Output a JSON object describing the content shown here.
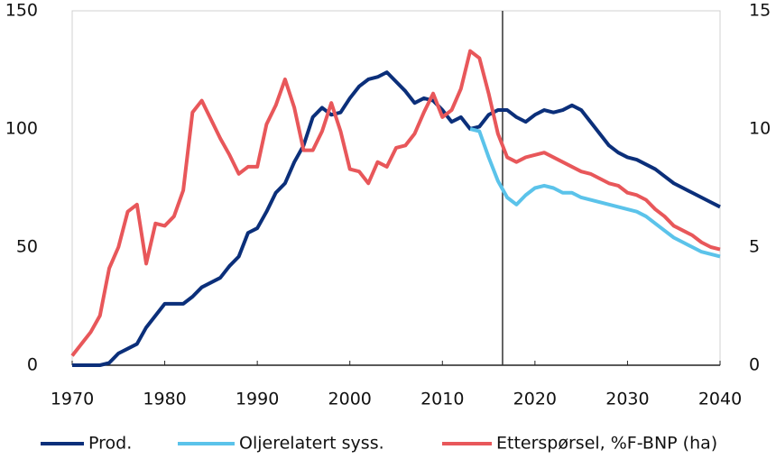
{
  "chart_data": {
    "type": "line",
    "x": [
      1970,
      1971,
      1972,
      1973,
      1974,
      1975,
      1976,
      1977,
      1978,
      1979,
      1980,
      1981,
      1982,
      1983,
      1984,
      1985,
      1986,
      1987,
      1988,
      1989,
      1990,
      1991,
      1992,
      1993,
      1994,
      1995,
      1996,
      1997,
      1998,
      1999,
      2000,
      2001,
      2002,
      2003,
      2004,
      2005,
      2006,
      2007,
      2008,
      2009,
      2010,
      2011,
      2012,
      2013,
      2014,
      2015,
      2016,
      2017,
      2018,
      2019,
      2020,
      2021,
      2022,
      2023,
      2024,
      2025,
      2026,
      2027,
      2028,
      2029,
      2030,
      2031,
      2032,
      2033,
      2034,
      2035,
      2036,
      2037,
      2038,
      2039,
      2040
    ],
    "series": [
      {
        "name": "Prod.",
        "color": "#0b2f7a",
        "values": [
          0,
          0,
          0,
          0,
          1,
          5,
          7,
          9,
          16,
          21,
          26,
          26,
          26,
          29,
          33,
          35,
          37,
          42,
          46,
          56,
          58,
          65,
          73,
          77,
          86,
          93,
          105,
          109,
          106,
          107,
          113,
          118,
          121,
          122,
          124,
          120,
          116,
          111,
          113,
          112,
          108,
          103,
          105,
          100,
          101,
          106,
          108,
          108,
          105,
          103,
          106,
          108,
          107,
          108,
          110,
          108,
          103,
          98,
          93,
          90,
          88,
          87,
          85,
          83,
          80,
          77,
          75,
          73,
          71,
          69,
          67
        ]
      },
      {
        "name": "Oljerelatert syss.",
        "color": "#5bc3ea",
        "values": [
          null,
          null,
          null,
          null,
          null,
          null,
          null,
          null,
          null,
          null,
          null,
          null,
          null,
          null,
          null,
          null,
          null,
          null,
          null,
          null,
          null,
          null,
          null,
          null,
          null,
          null,
          null,
          null,
          null,
          null,
          null,
          null,
          null,
          null,
          null,
          null,
          null,
          null,
          null,
          null,
          null,
          null,
          null,
          100,
          99,
          88,
          78,
          71,
          68,
          72,
          75,
          76,
          75,
          73,
          73,
          71,
          70,
          69,
          68,
          67,
          66,
          65,
          63,
          60,
          57,
          54,
          52,
          50,
          48,
          47,
          46
        ]
      },
      {
        "name": "Etterspørsel, %F-BNP (ha)",
        "color": "#e8575a",
        "axis": "y2",
        "values": [
          0.4,
          0.9,
          1.4,
          2.1,
          4.1,
          5.0,
          6.5,
          6.8,
          4.3,
          6.0,
          5.9,
          6.3,
          7.4,
          10.7,
          11.2,
          10.4,
          9.6,
          8.9,
          8.1,
          8.4,
          8.4,
          10.2,
          11.0,
          12.1,
          10.9,
          9.1,
          9.1,
          9.9,
          11.1,
          9.9,
          8.3,
          8.2,
          7.7,
          8.6,
          8.4,
          9.2,
          9.3,
          9.8,
          10.7,
          11.5,
          10.5,
          10.8,
          11.7,
          13.3,
          13.0,
          11.5,
          9.8,
          8.8,
          8.6,
          8.8,
          8.9,
          9.0,
          8.8,
          8.6,
          8.4,
          8.2,
          8.1,
          7.9,
          7.7,
          7.6,
          7.3,
          7.2,
          7.0,
          6.6,
          6.3,
          5.9,
          5.7,
          5.5,
          5.2,
          5.0,
          4.9
        ]
      }
    ],
    "xlim": [
      1970,
      2040
    ],
    "xticks": [
      1970,
      1980,
      1990,
      2000,
      2010,
      2020,
      2030,
      2040
    ],
    "ylim": [
      0,
      150
    ],
    "yticks": [
      0,
      50,
      100,
      150
    ],
    "y2lim": [
      0,
      15
    ],
    "y2ticks": [
      0,
      5,
      10,
      15
    ],
    "vlines": [
      2016.5
    ],
    "legend": "bottom"
  }
}
